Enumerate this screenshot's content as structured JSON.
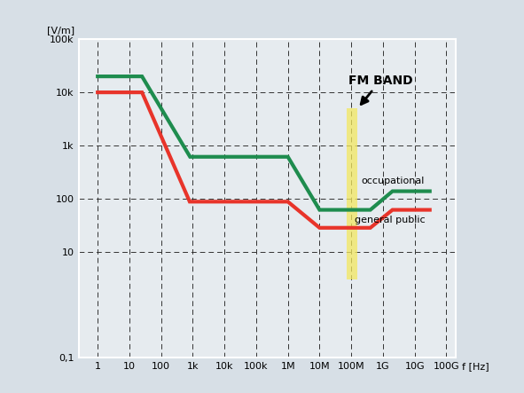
{
  "chart_data": {
    "type": "line",
    "ylabel": "[V/m]",
    "xlabel": "f [Hz]",
    "log": true,
    "grid": true,
    "xlim": [
      0.25,
      200000000000.0
    ],
    "ylim": [
      0.1,
      100000
    ],
    "xticks": [
      1,
      10,
      100,
      {
        "value": 1000,
        "label": "1k"
      },
      {
        "value": 10000,
        "label": "10k"
      },
      {
        "value": 100000,
        "label": "100k"
      },
      {
        "value": 1000000,
        "label": "1M"
      },
      {
        "value": 10000000,
        "label": "10M"
      },
      {
        "value": 100000000,
        "label": "100M"
      },
      {
        "value": 1000000000,
        "label": "1G"
      },
      {
        "value": 10000000000,
        "label": "10G"
      },
      {
        "value": 100000000000,
        "label": "100G"
      }
    ],
    "yticks": [
      {
        "value": 0.1,
        "label": "0,1"
      },
      10,
      100,
      {
        "value": 1000,
        "label": "1k"
      },
      {
        "value": 10000,
        "label": "10k"
      },
      {
        "value": 100000,
        "label": "100k"
      }
    ],
    "series": [
      {
        "name": "occupational",
        "color": "#1e8c4e",
        "x": [
          1,
          25,
          820,
          1000000,
          10000000,
          400000000,
          2000000000,
          30000000000
        ],
        "values": [
          20000,
          20000,
          610,
          610,
          61,
          61,
          137,
          137
        ]
      },
      {
        "name": "general public",
        "color": "#e8342a",
        "x": [
          1,
          25,
          800,
          1000000,
          10000000,
          400000000,
          2000000000,
          30000000000
        ],
        "values": [
          10000,
          10000,
          87,
          87,
          28,
          28,
          61,
          61
        ]
      }
    ],
    "annotations": [
      {
        "text": "FM BAND",
        "x": [
          70000000,
          160000000
        ],
        "y": [
          3,
          5000
        ],
        "color": "#f3e860"
      }
    ]
  }
}
